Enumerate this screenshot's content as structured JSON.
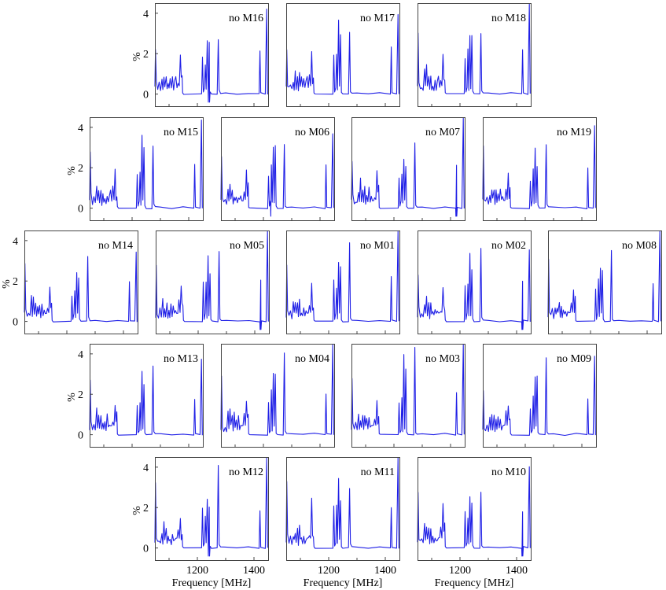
{
  "chart_data": {
    "type": "line",
    "description_axes": {
      "xlabel": "Frequency [MHz]",
      "ylabel": "%",
      "xlim": [
        1050,
        1450
      ],
      "ylim": [
        -0.6,
        4.5
      ],
      "xticks": [
        1200,
        1400
      ],
      "yticks": [
        0,
        2,
        4
      ],
      "xtick_labels": [
        "1200",
        "1400"
      ],
      "ytick_labels": [
        "0",
        "2",
        "4"
      ]
    },
    "line_color": "#1f1fe6",
    "base": [
      [
        1050,
        0.3
      ],
      [
        1052,
        2.6
      ],
      [
        1055,
        0.5
      ],
      [
        1060,
        0.25
      ],
      [
        1065,
        0.45
      ],
      [
        1070,
        0.2
      ],
      [
        1075,
        0.9
      ],
      [
        1078,
        0.3
      ],
      [
        1082,
        1.0
      ],
      [
        1085,
        0.35
      ],
      [
        1090,
        0.7
      ],
      [
        1093,
        0.2
      ],
      [
        1097,
        0.8
      ],
      [
        1100,
        0.3
      ],
      [
        1104,
        0.6
      ],
      [
        1108,
        0.25
      ],
      [
        1112,
        0.7
      ],
      [
        1116,
        0.3
      ],
      [
        1120,
        0.5
      ],
      [
        1124,
        0.6
      ],
      [
        1128,
        0.35
      ],
      [
        1132,
        0.8
      ],
      [
        1136,
        0.4
      ],
      [
        1140,
        1.8
      ],
      [
        1143,
        0.6
      ],
      [
        1146,
        0.9
      ],
      [
        1148,
        0.05
      ],
      [
        1152,
        0.0
      ],
      [
        1215,
        0.0
      ],
      [
        1218,
        1.6
      ],
      [
        1221,
        0.1
      ],
      [
        1225,
        0.3
      ],
      [
        1228,
        1.8
      ],
      [
        1231,
        0.2
      ],
      [
        1235,
        2.9
      ],
      [
        1238,
        0.3
      ],
      [
        1242,
        2.5
      ],
      [
        1245,
        0.1
      ],
      [
        1250,
        0.0
      ],
      [
        1270,
        0.0
      ],
      [
        1274,
        3.3
      ],
      [
        1277,
        0.15
      ],
      [
        1282,
        0.05
      ],
      [
        1300,
        0.05
      ],
      [
        1340,
        0.0
      ],
      [
        1380,
        0.05
      ],
      [
        1418,
        0.0
      ],
      [
        1421,
        1.8
      ],
      [
        1424,
        0.05
      ],
      [
        1440,
        0.0
      ],
      [
        1445,
        4.4
      ],
      [
        1448,
        0.0
      ]
    ],
    "series": [
      {
        "name": "no M16",
        "peak_scale": 0.95,
        "noise": 0.05,
        "dip": 1240
      },
      {
        "name": "no M17",
        "peak_scale": 1.05,
        "noise": 0.04,
        "dip": 0
      },
      {
        "name": "no M18",
        "peak_scale": 1.0,
        "noise": 0.05,
        "dip": 0
      },
      {
        "name": "no M15",
        "peak_scale": 1.0,
        "noise": 0.06,
        "dip": 0
      },
      {
        "name": "no M06",
        "peak_scale": 1.0,
        "noise": 0.05,
        "dip": 1225
      },
      {
        "name": "no M07",
        "peak_scale": 1.0,
        "noise": 0.05,
        "dip": 1420
      },
      {
        "name": "no M19",
        "peak_scale": 0.95,
        "noise": 0.07,
        "dip": 0
      },
      {
        "name": "no M14",
        "peak_scale": 0.95,
        "noise": 0.05,
        "dip": 1205
      },
      {
        "name": "no M05",
        "peak_scale": 1.0,
        "noise": 0.05,
        "dip": 1420
      },
      {
        "name": "no M01",
        "peak_scale": 1.1,
        "noise": 0.05,
        "dip": 0
      },
      {
        "name": "no M02",
        "peak_scale": 1.0,
        "noise": 0.05,
        "dip": 1420
      },
      {
        "name": "no M08",
        "peak_scale": 0.95,
        "noise": 0.05,
        "dip": 0
      },
      {
        "name": "no M13",
        "peak_scale": 0.9,
        "noise": 0.05,
        "dip": 0
      },
      {
        "name": "no M04",
        "peak_scale": 1.05,
        "noise": 0.05,
        "dip": 0
      },
      {
        "name": "no M03",
        "peak_scale": 1.1,
        "noise": 0.05,
        "dip": 1415
      },
      {
        "name": "no M09",
        "peak_scale": 0.95,
        "noise": 0.08,
        "dip": 0
      },
      {
        "name": "no M12",
        "peak_scale": 1.0,
        "noise": 0.05,
        "dip": 1240
      },
      {
        "name": "no M11",
        "peak_scale": 1.1,
        "noise": 0.05,
        "dip": 0
      },
      {
        "name": "no M10",
        "peak_scale": 1.0,
        "noise": 0.05,
        "dip": 1420
      }
    ]
  }
}
